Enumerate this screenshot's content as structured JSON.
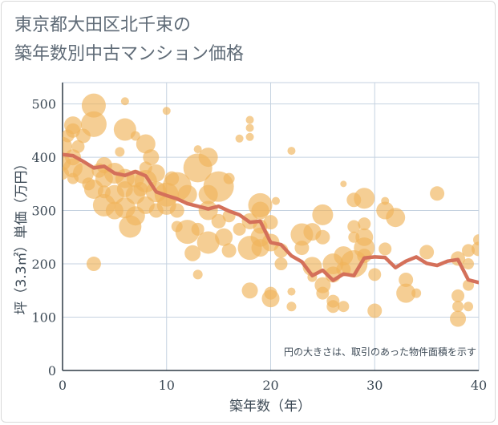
{
  "chart_data": {
    "type": "scatter",
    "title_line1": "東京都大田区北千束の",
    "title_line2": "築年数別中古マンション価格",
    "xlabel": "築年数（年）",
    "ylabel": "坪（3.3㎡）単価（万円）",
    "xlim": [
      0,
      40
    ],
    "ylim": [
      0,
      540
    ],
    "xticks": [
      "0",
      "10",
      "20",
      "30",
      "40"
    ],
    "yticks": [
      "0",
      "100",
      "200",
      "300",
      "400",
      "500"
    ],
    "note": "円の大きさは、取引のあった物件面積を示す",
    "grid": true,
    "colors": {
      "bubble": "#f0b45a",
      "line": "#d4705a",
      "grid": "#c5d2e0",
      "axis": "#3d4a56"
    },
    "points": [
      {
        "x": 0,
        "y": 420,
        "s": 12
      },
      {
        "x": 0,
        "y": 390,
        "s": 10
      },
      {
        "x": 0,
        "y": 370,
        "s": 8
      },
      {
        "x": 0.5,
        "y": 440,
        "s": 8
      },
      {
        "x": 1,
        "y": 460,
        "s": 11
      },
      {
        "x": 1,
        "y": 450,
        "s": 9
      },
      {
        "x": 1,
        "y": 400,
        "s": 10
      },
      {
        "x": 1,
        "y": 380,
        "s": 12
      },
      {
        "x": 1,
        "y": 360,
        "s": 7
      },
      {
        "x": 1.5,
        "y": 420,
        "s": 8
      },
      {
        "x": 2,
        "y": 440,
        "s": 9
      },
      {
        "x": 2,
        "y": 370,
        "s": 13
      },
      {
        "x": 2.5,
        "y": 350,
        "s": 8
      },
      {
        "x": 3,
        "y": 497,
        "s": 15
      },
      {
        "x": 3,
        "y": 462,
        "s": 16
      },
      {
        "x": 3,
        "y": 340,
        "s": 12
      },
      {
        "x": 3,
        "y": 200,
        "s": 9
      },
      {
        "x": 3.5,
        "y": 375,
        "s": 9
      },
      {
        "x": 4,
        "y": 385,
        "s": 10
      },
      {
        "x": 4,
        "y": 360,
        "s": 11
      },
      {
        "x": 4,
        "y": 310,
        "s": 14
      },
      {
        "x": 4,
        "y": 335,
        "s": 8
      },
      {
        "x": 5,
        "y": 370,
        "s": 13
      },
      {
        "x": 5,
        "y": 330,
        "s": 12
      },
      {
        "x": 5,
        "y": 300,
        "s": 11
      },
      {
        "x": 5.5,
        "y": 410,
        "s": 6
      },
      {
        "x": 6,
        "y": 505,
        "s": 5
      },
      {
        "x": 6,
        "y": 452,
        "s": 14
      },
      {
        "x": 6,
        "y": 360,
        "s": 12
      },
      {
        "x": 6,
        "y": 340,
        "s": 10
      },
      {
        "x": 6,
        "y": 305,
        "s": 13
      },
      {
        "x": 6.5,
        "y": 270,
        "s": 14
      },
      {
        "x": 7,
        "y": 440,
        "s": 6
      },
      {
        "x": 7,
        "y": 360,
        "s": 11
      },
      {
        "x": 7,
        "y": 330,
        "s": 12
      },
      {
        "x": 7,
        "y": 290,
        "s": 12
      },
      {
        "x": 7.5,
        "y": 340,
        "s": 9
      },
      {
        "x": 8,
        "y": 425,
        "s": 12
      },
      {
        "x": 8,
        "y": 380,
        "s": 8
      },
      {
        "x": 8,
        "y": 355,
        "s": 14
      },
      {
        "x": 8,
        "y": 310,
        "s": 11
      },
      {
        "x": 8.5,
        "y": 400,
        "s": 10
      },
      {
        "x": 9,
        "y": 370,
        "s": 11
      },
      {
        "x": 9,
        "y": 335,
        "s": 13
      },
      {
        "x": 9,
        "y": 300,
        "s": 9
      },
      {
        "x": 10,
        "y": 487,
        "s": 5
      },
      {
        "x": 10,
        "y": 330,
        "s": 15
      },
      {
        "x": 10,
        "y": 310,
        "s": 12
      },
      {
        "x": 10.5,
        "y": 360,
        "s": 9
      },
      {
        "x": 11,
        "y": 345,
        "s": 18
      },
      {
        "x": 11,
        "y": 300,
        "s": 9
      },
      {
        "x": 11,
        "y": 270,
        "s": 7
      },
      {
        "x": 12,
        "y": 330,
        "s": 12
      },
      {
        "x": 12,
        "y": 260,
        "s": 15
      },
      {
        "x": 12.5,
        "y": 220,
        "s": 10
      },
      {
        "x": 13,
        "y": 380,
        "s": 18
      },
      {
        "x": 13,
        "y": 415,
        "s": 5
      },
      {
        "x": 13,
        "y": 265,
        "s": 8
      },
      {
        "x": 13,
        "y": 180,
        "s": 6
      },
      {
        "x": 14,
        "y": 400,
        "s": 12
      },
      {
        "x": 14,
        "y": 330,
        "s": 12
      },
      {
        "x": 14,
        "y": 300,
        "s": 12
      },
      {
        "x": 14,
        "y": 240,
        "s": 14
      },
      {
        "x": 15,
        "y": 345,
        "s": 19
      },
      {
        "x": 15,
        "y": 280,
        "s": 9
      },
      {
        "x": 15.5,
        "y": 250,
        "s": 11
      },
      {
        "x": 16,
        "y": 360,
        "s": 7
      },
      {
        "x": 16,
        "y": 290,
        "s": 8
      },
      {
        "x": 16,
        "y": 225,
        "s": 9
      },
      {
        "x": 17,
        "y": 435,
        "s": 5
      },
      {
        "x": 17,
        "y": 265,
        "s": 8
      },
      {
        "x": 18,
        "y": 470,
        "s": 5
      },
      {
        "x": 18,
        "y": 455,
        "s": 5
      },
      {
        "x": 18,
        "y": 438,
        "s": 5
      },
      {
        "x": 18,
        "y": 280,
        "s": 10
      },
      {
        "x": 18,
        "y": 230,
        "s": 15
      },
      {
        "x": 18,
        "y": 150,
        "s": 10
      },
      {
        "x": 19,
        "y": 310,
        "s": 15
      },
      {
        "x": 19,
        "y": 300,
        "s": 11
      },
      {
        "x": 19,
        "y": 250,
        "s": 12
      },
      {
        "x": 19,
        "y": 230,
        "s": 11
      },
      {
        "x": 19,
        "y": 270,
        "s": 9
      },
      {
        "x": 20,
        "y": 278,
        "s": 9
      },
      {
        "x": 20,
        "y": 240,
        "s": 11
      },
      {
        "x": 20,
        "y": 135,
        "s": 11
      },
      {
        "x": 20,
        "y": 145,
        "s": 8
      },
      {
        "x": 20.5,
        "y": 318,
        "s": 5
      },
      {
        "x": 21,
        "y": 225,
        "s": 9
      },
      {
        "x": 21,
        "y": 200,
        "s": 8
      },
      {
        "x": 22,
        "y": 412,
        "s": 5
      },
      {
        "x": 22,
        "y": 148,
        "s": 5
      },
      {
        "x": 22,
        "y": 120,
        "s": 6
      },
      {
        "x": 23,
        "y": 255,
        "s": 14
      },
      {
        "x": 23,
        "y": 230,
        "s": 9
      },
      {
        "x": 24,
        "y": 260,
        "s": 11
      },
      {
        "x": 24,
        "y": 195,
        "s": 12
      },
      {
        "x": 24,
        "y": 175,
        "s": 6
      },
      {
        "x": 25,
        "y": 292,
        "s": 13
      },
      {
        "x": 25,
        "y": 250,
        "s": 9
      },
      {
        "x": 25,
        "y": 160,
        "s": 10
      },
      {
        "x": 25,
        "y": 145,
        "s": 8
      },
      {
        "x": 26,
        "y": 200,
        "s": 13
      },
      {
        "x": 26,
        "y": 180,
        "s": 10
      },
      {
        "x": 26,
        "y": 130,
        "s": 8
      },
      {
        "x": 26,
        "y": 120,
        "s": 8
      },
      {
        "x": 27,
        "y": 350,
        "s": 4
      },
      {
        "x": 27,
        "y": 215,
        "s": 12
      },
      {
        "x": 27,
        "y": 190,
        "s": 9
      },
      {
        "x": 27,
        "y": 120,
        "s": 7
      },
      {
        "x": 28,
        "y": 320,
        "s": 9
      },
      {
        "x": 28,
        "y": 200,
        "s": 17
      },
      {
        "x": 28,
        "y": 270,
        "s": 8
      },
      {
        "x": 28,
        "y": 250,
        "s": 7
      },
      {
        "x": 29,
        "y": 323,
        "s": 13
      },
      {
        "x": 29,
        "y": 275,
        "s": 8
      },
      {
        "x": 29,
        "y": 250,
        "s": 11
      },
      {
        "x": 29,
        "y": 230,
        "s": 13
      },
      {
        "x": 29,
        "y": 215,
        "s": 9
      },
      {
        "x": 30,
        "y": 112,
        "s": 9
      },
      {
        "x": 30,
        "y": 180,
        "s": 8
      },
      {
        "x": 31,
        "y": 318,
        "s": 5
      },
      {
        "x": 31,
        "y": 300,
        "s": 11
      },
      {
        "x": 31,
        "y": 228,
        "s": 8
      },
      {
        "x": 32,
        "y": 287,
        "s": 12
      },
      {
        "x": 33,
        "y": 170,
        "s": 9
      },
      {
        "x": 33,
        "y": 145,
        "s": 12
      },
      {
        "x": 34,
        "y": 145,
        "s": 6
      },
      {
        "x": 35,
        "y": 222,
        "s": 9
      },
      {
        "x": 36,
        "y": 332,
        "s": 9
      },
      {
        "x": 38,
        "y": 210,
        "s": 9
      },
      {
        "x": 38,
        "y": 140,
        "s": 8
      },
      {
        "x": 38,
        "y": 120,
        "s": 7
      },
      {
        "x": 38,
        "y": 97,
        "s": 10
      },
      {
        "x": 39,
        "y": 225,
        "s": 8
      },
      {
        "x": 39,
        "y": 200,
        "s": 7
      },
      {
        "x": 39,
        "y": 160,
        "s": 7
      },
      {
        "x": 39,
        "y": 120,
        "s": 6
      },
      {
        "x": 40,
        "y": 245,
        "s": 7
      },
      {
        "x": 40,
        "y": 228,
        "s": 9
      }
    ],
    "series": [
      {
        "x": [
          0,
          1,
          2,
          3,
          4,
          5,
          6,
          7,
          8,
          9,
          10,
          11,
          12,
          13,
          14,
          15,
          16,
          17,
          18,
          19,
          20,
          21,
          22,
          23,
          24,
          25,
          26,
          27,
          28,
          29,
          30,
          31,
          32,
          33,
          34,
          35,
          36,
          37,
          38,
          39,
          40
        ],
        "values": [
          405,
          403,
          392,
          380,
          383,
          370,
          366,
          373,
          365,
          335,
          328,
          322,
          313,
          308,
          303,
          308,
          299,
          292,
          278,
          280,
          240,
          236,
          215,
          204,
          178,
          188,
          169,
          181,
          178,
          211,
          213,
          212,
          193,
          205,
          213,
          201,
          197,
          205,
          208,
          170,
          165
        ]
      }
    ]
  }
}
